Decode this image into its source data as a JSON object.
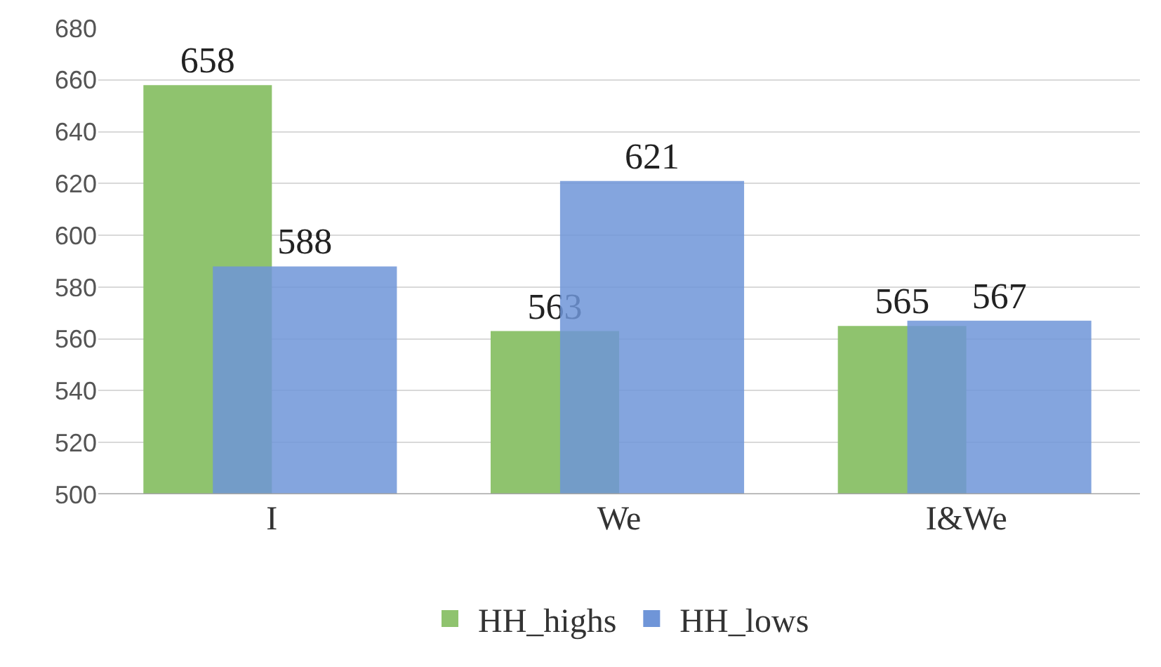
{
  "chart_data": {
    "type": "bar",
    "categories": [
      "I",
      "We",
      "I&We"
    ],
    "series": [
      {
        "name": "HH_highs",
        "color": "#8fc36e",
        "values": [
          658,
          563,
          565
        ]
      },
      {
        "name": "HH_lows",
        "color": "#6f95d8",
        "values": [
          588,
          621,
          567
        ]
      }
    ],
    "ylim": [
      500,
      680
    ],
    "yticks": [
      500,
      520,
      540,
      560,
      580,
      600,
      620,
      640,
      660,
      680
    ],
    "grid": "y",
    "legend": "bottom",
    "data_labels": true
  }
}
